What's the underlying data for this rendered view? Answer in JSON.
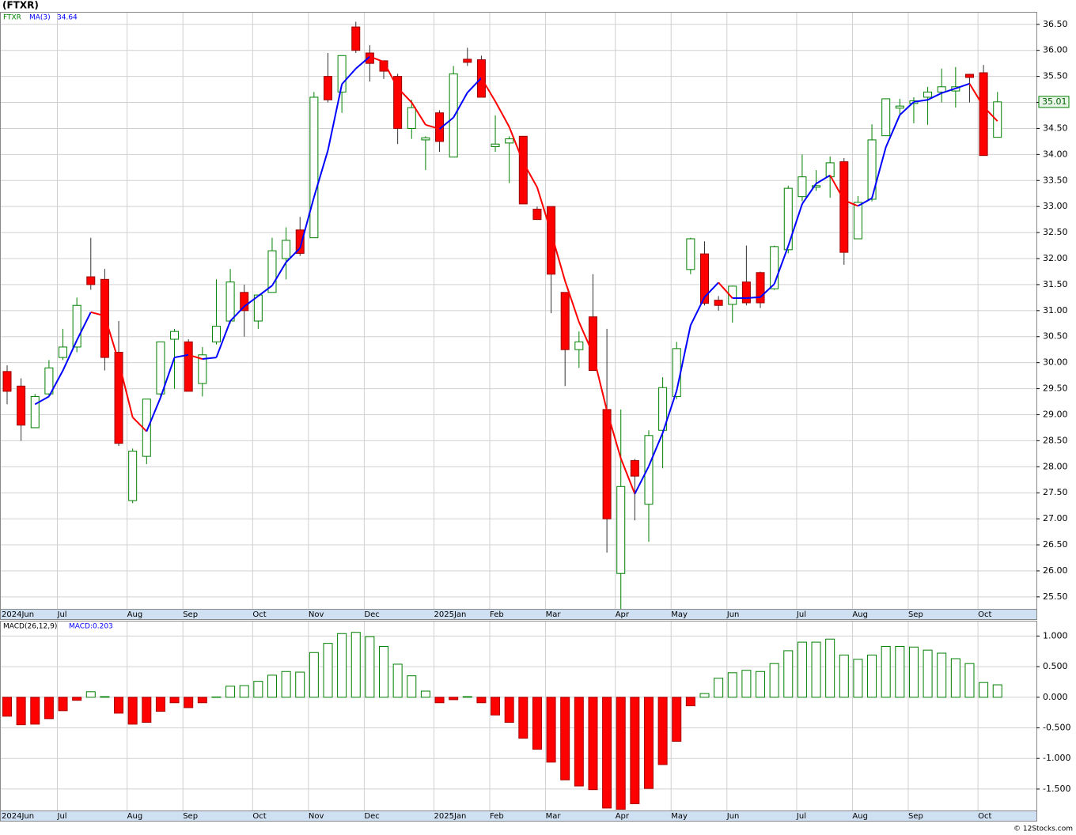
{
  "chart_data": [
    {
      "type": "candlestick",
      "title": "(FTXR)",
      "symbol": "FTXR",
      "ma_name": "MA(3)",
      "ma_last": 34.64,
      "last_price": 35.01,
      "categories": [
        "2024Jun",
        null,
        null,
        null,
        "Jul",
        null,
        null,
        null,
        null,
        "Aug",
        null,
        null,
        null,
        "Sep",
        null,
        null,
        null,
        null,
        "Oct",
        null,
        null,
        null,
        "Nov",
        null,
        null,
        null,
        "Dec",
        null,
        null,
        null,
        null,
        "2025Jan",
        null,
        null,
        null,
        "Feb",
        null,
        null,
        null,
        "Mar",
        null,
        null,
        null,
        null,
        "Apr",
        null,
        null,
        null,
        "May",
        null,
        null,
        null,
        "Jun",
        null,
        null,
        null,
        null,
        "Jul",
        null,
        null,
        null,
        "Aug",
        null,
        null,
        null,
        "Sep",
        null,
        null,
        null,
        null,
        "Oct",
        null
      ],
      "open": [
        29.83,
        29.55,
        28.75,
        29.4,
        30.1,
        30.3,
        31.65,
        31.6,
        30.2,
        27.35,
        28.2,
        29.4,
        30.45,
        30.4,
        29.6,
        30.4,
        30.8,
        31.35,
        30.8,
        31.35,
        32.0,
        32.55,
        32.4,
        35.5,
        35.2,
        36.45,
        35.95,
        35.8,
        35.5,
        34.5,
        34.28,
        34.8,
        33.95,
        35.83,
        35.82,
        34.15,
        34.22,
        34.35,
        32.95,
        33.0,
        31.35,
        30.25,
        30.88,
        29.1,
        25.95,
        28.12,
        27.28,
        28.7,
        29.35,
        31.79,
        32.09,
        31.2,
        31.12,
        31.55,
        31.73,
        31.42,
        32.17,
        33.19,
        33.37,
        33.57,
        33.86,
        32.38,
        33.14,
        34.36,
        34.89,
        34.98,
        35.1,
        35.2,
        35.22,
        35.54,
        35.57,
        34.33
      ],
      "high": [
        29.95,
        29.7,
        29.4,
        30.05,
        30.65,
        31.25,
        32.4,
        31.8,
        30.8,
        28.35,
        29.3,
        30.4,
        30.65,
        30.45,
        30.3,
        31.6,
        31.8,
        31.5,
        31.3,
        32.4,
        32.6,
        32.8,
        35.2,
        35.95,
        35.9,
        36.55,
        36.1,
        35.8,
        35.55,
        35.05,
        34.35,
        34.85,
        35.7,
        36.05,
        35.9,
        34.75,
        34.35,
        34.35,
        33.0,
        33.0,
        31.35,
        30.6,
        31.7,
        30.65,
        29.1,
        28.15,
        28.7,
        29.72,
        30.4,
        32.4,
        32.33,
        31.28,
        31.48,
        32.25,
        31.75,
        32.25,
        33.4,
        34.0,
        33.7,
        33.96,
        33.93,
        33.2,
        34.58,
        35.07,
        35.07,
        35.1,
        35.3,
        35.65,
        35.68,
        35.55,
        35.72,
        35.2
      ],
      "low": [
        29.2,
        28.5,
        28.75,
        29.35,
        30.05,
        30.2,
        31.4,
        29.85,
        28.4,
        27.3,
        28.05,
        29.35,
        29.5,
        29.45,
        29.35,
        30.35,
        30.75,
        30.5,
        30.65,
        31.35,
        31.6,
        32.05,
        32.4,
        35.0,
        34.8,
        35.95,
        35.4,
        35.45,
        34.2,
        34.3,
        33.7,
        34.05,
        33.95,
        35.7,
        35.1,
        34.05,
        33.45,
        33.05,
        32.75,
        30.95,
        29.55,
        29.9,
        29.85,
        26.35,
        25.27,
        26.97,
        26.56,
        27.97,
        29.3,
        31.7,
        31.1,
        31.0,
        30.77,
        31.1,
        31.05,
        31.4,
        32.1,
        33.1,
        33.3,
        33.17,
        31.88,
        32.38,
        33.1,
        34.36,
        34.77,
        34.6,
        34.57,
        35.0,
        34.9,
        35.0,
        33.98,
        34.33
      ],
      "close": [
        29.45,
        28.8,
        29.35,
        29.9,
        30.3,
        31.1,
        31.5,
        30.1,
        28.45,
        28.3,
        29.3,
        30.4,
        30.6,
        29.45,
        30.15,
        30.7,
        31.55,
        31.0,
        31.3,
        32.15,
        32.35,
        32.1,
        35.1,
        35.05,
        35.9,
        36.0,
        35.75,
        35.6,
        34.5,
        34.9,
        34.32,
        34.25,
        35.55,
        35.77,
        35.1,
        34.2,
        34.3,
        33.05,
        32.75,
        31.7,
        30.25,
        30.4,
        29.85,
        27.0,
        27.62,
        27.82,
        28.6,
        29.52,
        30.27,
        32.38,
        31.14,
        31.1,
        31.47,
        31.15,
        31.15,
        32.23,
        33.35,
        33.57,
        33.4,
        33.84,
        32.12,
        33.08,
        34.28,
        35.07,
        34.93,
        35.03,
        35.2,
        35.3,
        35.3,
        35.48,
        33.98,
        35.01
      ],
      "ma": [
        null,
        null,
        29.2,
        29.35,
        29.85,
        30.43,
        30.97,
        30.9,
        30.02,
        28.95,
        28.68,
        29.33,
        30.1,
        30.15,
        30.07,
        30.1,
        30.8,
        31.08,
        31.28,
        31.48,
        31.93,
        32.2,
        33.18,
        34.08,
        35.35,
        35.65,
        35.88,
        35.78,
        35.28,
        35.0,
        34.57,
        34.49,
        34.71,
        35.19,
        35.47,
        35.02,
        34.53,
        33.85,
        33.37,
        32.5,
        31.57,
        30.78,
        30.17,
        29.08,
        28.16,
        27.48,
        28.01,
        28.65,
        29.46,
        30.72,
        31.26,
        31.54,
        31.24,
        31.24,
        31.26,
        31.51,
        32.24,
        33.05,
        33.44,
        33.6,
        33.12,
        33.01,
        33.16,
        34.14,
        34.76,
        35.01,
        35.05,
        35.18,
        35.27,
        35.36,
        34.92,
        34.64
      ],
      "up_color": "#008000",
      "down_color": "#ff0000",
      "ma_rising_color": "#0000ff",
      "ma_falling_color": "#ff0000",
      "ylim": [
        25.27,
        36.74
      ],
      "yticks": [
        {
          "value": 25.5,
          "label": "25.50"
        },
        {
          "value": 26,
          "label": "26.00"
        },
        {
          "value": 26.5,
          "label": "26.50"
        },
        {
          "value": 27,
          "label": "27.00"
        },
        {
          "value": 27.5,
          "label": "27.50"
        },
        {
          "value": 28,
          "label": "28.00"
        },
        {
          "value": 28.5,
          "label": "28.50"
        },
        {
          "value": 29,
          "label": "29.00"
        },
        {
          "value": 29.5,
          "label": "29.50"
        },
        {
          "value": 30,
          "label": "30.00"
        },
        {
          "value": 30.5,
          "label": "30.50"
        },
        {
          "value": 31,
          "label": "31.00"
        },
        {
          "value": 31.5,
          "label": "31.50"
        },
        {
          "value": 32,
          "label": "32.00"
        },
        {
          "value": 32.5,
          "label": "32.50"
        },
        {
          "value": 33,
          "label": "33.00"
        },
        {
          "value": 33.5,
          "label": "33.50"
        },
        {
          "value": 34,
          "label": "34.00"
        },
        {
          "value": 34.5,
          "label": "34.50"
        },
        {
          "value": 35,
          "label": "35.00"
        },
        {
          "value": 35.5,
          "label": "35.50"
        },
        {
          "value": 36,
          "label": "36.00"
        },
        {
          "value": 36.5,
          "label": "36.50"
        }
      ],
      "grid": true
    },
    {
      "type": "bar",
      "title": "MACD(26,12,9)",
      "value_label": "MACD:0.203",
      "categories": [
        "2024Jun",
        null,
        null,
        null,
        "Jul",
        null,
        null,
        null,
        null,
        "Aug",
        null,
        null,
        null,
        "Sep",
        null,
        null,
        null,
        null,
        "Oct",
        null,
        null,
        null,
        "Nov",
        null,
        null,
        null,
        "Dec",
        null,
        null,
        null,
        null,
        "2025Jan",
        null,
        null,
        null,
        "Feb",
        null,
        null,
        null,
        "Mar",
        null,
        null,
        null,
        null,
        "Apr",
        null,
        null,
        null,
        "May",
        null,
        null,
        null,
        "Jun",
        null,
        null,
        null,
        null,
        "Jul",
        null,
        null,
        null,
        "Aug",
        null,
        null,
        null,
        "Sep",
        null,
        null,
        null,
        null,
        "Oct",
        null
      ],
      "values": [
        -0.31,
        -0.45,
        -0.44,
        -0.35,
        -0.22,
        -0.05,
        0.09,
        0.01,
        -0.26,
        -0.44,
        -0.41,
        -0.23,
        -0.09,
        -0.17,
        -0.09,
        0.005,
        0.18,
        0.19,
        0.26,
        0.36,
        0.42,
        0.41,
        0.73,
        0.88,
        1.04,
        1.06,
        0.99,
        0.83,
        0.54,
        0.35,
        0.1,
        -0.09,
        -0.04,
        0.01,
        -0.09,
        -0.29,
        -0.41,
        -0.67,
        -0.85,
        -1.06,
        -1.35,
        -1.45,
        -1.51,
        -1.81,
        -1.83,
        -1.74,
        -1.49,
        -1.1,
        -0.72,
        -0.14,
        0.06,
        0.31,
        0.4,
        0.44,
        0.42,
        0.55,
        0.76,
        0.9,
        0.9,
        0.95,
        0.69,
        0.62,
        0.69,
        0.83,
        0.83,
        0.82,
        0.77,
        0.72,
        0.63,
        0.55,
        0.24,
        0.203
      ],
      "up_color": "#008000",
      "down_color": "#ff0000",
      "ylim": [
        -1.85,
        1.25
      ],
      "yticks": [
        {
          "value": -1.5,
          "label": "-1.500"
        },
        {
          "value": -1,
          "label": "-1.000"
        },
        {
          "value": -0.5,
          "label": "-0.500"
        },
        {
          "value": 0,
          "label": "0.000"
        },
        {
          "value": 0.5,
          "label": "0.500"
        },
        {
          "value": 1,
          "label": "1.000"
        }
      ],
      "grid": true
    }
  ],
  "footer": "© 12Stocks.com"
}
